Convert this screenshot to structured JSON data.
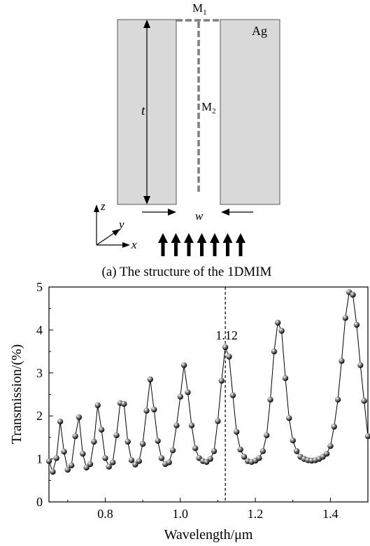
{
  "structure": {
    "label_m1": "M",
    "label_m1_sub": "1",
    "label_m2": "M",
    "label_m2_sub": "2",
    "label_metal": "Ag",
    "label_t": "t",
    "label_w": "w",
    "axis_z": "z",
    "axis_y": "y",
    "axis_x": "x",
    "arrow_count": 7,
    "caption": "(a) The structure of the 1DMIM",
    "metal_color": "#d9d9d9"
  },
  "chart_data": {
    "type": "line",
    "xlabel": "Wavelength/μm",
    "ylabel": "Transmission/(%)",
    "xlim": [
      0.65,
      1.5
    ],
    "ylim": [
      0,
      5
    ],
    "xticks": [
      "0.8",
      "1.0",
      "1.2",
      "1.4"
    ],
    "xtick_values": [
      0.8,
      1.0,
      1.2,
      1.4
    ],
    "yticks": [
      "0",
      "1",
      "2",
      "3",
      "4",
      "5"
    ],
    "ytick_values": [
      0,
      1,
      2,
      3,
      4,
      5
    ],
    "annotation": {
      "text": "1.12",
      "x": 1.12
    },
    "series": [
      {
        "marker": "sphere",
        "x": [
          0.65,
          0.66,
          0.67,
          0.68,
          0.69,
          0.7,
          0.71,
          0.72,
          0.73,
          0.74,
          0.75,
          0.76,
          0.77,
          0.78,
          0.79,
          0.8,
          0.81,
          0.82,
          0.83,
          0.84,
          0.85,
          0.86,
          0.87,
          0.88,
          0.89,
          0.9,
          0.91,
          0.92,
          0.93,
          0.94,
          0.95,
          0.96,
          0.97,
          0.98,
          0.99,
          1.0,
          1.01,
          1.02,
          1.03,
          1.04,
          1.05,
          1.06,
          1.07,
          1.08,
          1.09,
          1.1,
          1.11,
          1.12,
          1.13,
          1.14,
          1.15,
          1.16,
          1.17,
          1.18,
          1.19,
          1.2,
          1.21,
          1.22,
          1.23,
          1.24,
          1.25,
          1.26,
          1.27,
          1.28,
          1.29,
          1.3,
          1.31,
          1.32,
          1.33,
          1.34,
          1.35,
          1.36,
          1.37,
          1.38,
          1.39,
          1.4,
          1.41,
          1.42,
          1.43,
          1.44,
          1.45,
          1.46,
          1.47,
          1.48,
          1.49,
          1.5
        ],
        "y": [
          0.95,
          0.7,
          1.02,
          1.87,
          1.17,
          0.75,
          0.85,
          1.53,
          1.97,
          1.12,
          0.8,
          0.88,
          1.4,
          2.25,
          1.68,
          1.02,
          0.82,
          0.92,
          1.55,
          2.3,
          2.28,
          1.4,
          0.97,
          0.87,
          0.95,
          1.35,
          2.12,
          2.85,
          2.15,
          1.42,
          1.02,
          0.88,
          0.92,
          1.2,
          1.78,
          2.45,
          3.18,
          2.55,
          1.78,
          1.25,
          1.02,
          0.95,
          0.93,
          1.0,
          1.18,
          1.88,
          2.82,
          3.6,
          3.38,
          2.48,
          1.63,
          1.22,
          1.05,
          0.95,
          0.93,
          0.96,
          1.02,
          1.18,
          1.55,
          2.38,
          3.5,
          4.17,
          3.98,
          2.88,
          1.95,
          1.43,
          1.18,
          1.05,
          1.0,
          0.97,
          0.96,
          0.97,
          1.0,
          1.05,
          1.12,
          1.3,
          1.75,
          2.38,
          3.28,
          4.28,
          4.88,
          4.82,
          4.12,
          3.18,
          2.35,
          1.53
        ]
      }
    ]
  }
}
